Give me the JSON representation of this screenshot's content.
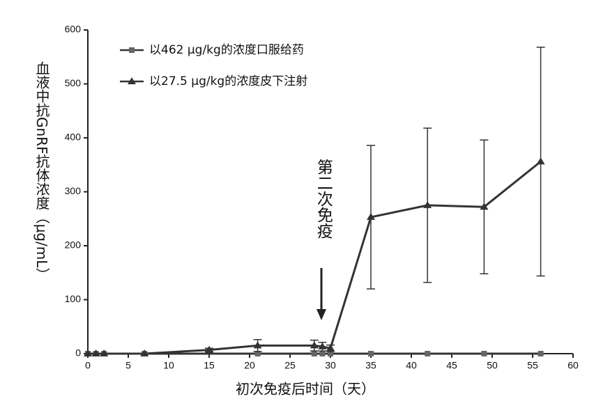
{
  "chart_data": {
    "type": "line",
    "x_label": "初次免疫后时间（天）",
    "y_label": "血液中抗GnRF抗体浓度（μg/mL）",
    "annotation": "第二次免疫",
    "annotation_x": 29,
    "xlim": [
      0,
      60
    ],
    "xticks": [
      0,
      5,
      10,
      15,
      20,
      25,
      30,
      35,
      40,
      45,
      50,
      55,
      60
    ],
    "ylim": [
      0,
      600
    ],
    "yticks": [
      0,
      100,
      200,
      300,
      400,
      500,
      600
    ],
    "legend": "upper left",
    "series": [
      {
        "name": "以462 μg/kg的浓度口服给药",
        "color": "#666666",
        "line_color": "#333333",
        "marker": "square",
        "x": [
          0,
          1,
          2,
          7,
          21,
          28,
          29,
          30,
          35,
          42,
          49,
          56
        ],
        "values": [
          0,
          0,
          0,
          0,
          0,
          0,
          0,
          0,
          0,
          0,
          0,
          0
        ]
      },
      {
        "name": "以27.5 μg/kg的浓度皮下注射",
        "color": "#333333",
        "line_color": "#333333",
        "marker": "triangle",
        "x": [
          0,
          1,
          2,
          7,
          15,
          21,
          28,
          29,
          30,
          35,
          42,
          49,
          56
        ],
        "values": [
          0,
          0,
          0,
          0,
          7,
          15,
          15,
          13,
          10,
          253,
          275,
          272,
          356
        ],
        "errors": [
          null,
          null,
          null,
          null,
          3,
          11,
          10,
          8,
          6,
          133,
          143,
          124,
          212
        ]
      }
    ]
  }
}
